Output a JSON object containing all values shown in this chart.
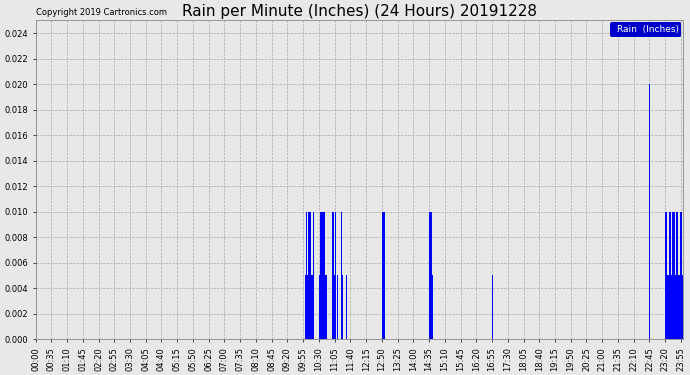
{
  "title": "Rain per Minute (Inches) (24 Hours) 20191228",
  "copyright_text": "Copyright 2019 Cartronics.com",
  "legend_label": "Rain  (Inches)",
  "ylim": [
    0,
    0.025
  ],
  "yticks": [
    0.0,
    0.002,
    0.004,
    0.006,
    0.008,
    0.01,
    0.012,
    0.014,
    0.016,
    0.018,
    0.02,
    0.022,
    0.024
  ],
  "background_color": "#e8e8e8",
  "plot_bg_color": "#e8e8e8",
  "bar_color": "#0000ff",
  "grid_color": "#aaaaaa",
  "title_fontsize": 11,
  "tick_fontsize": 6,
  "total_minutes": 1440,
  "xtick_positions": [
    0,
    35,
    70,
    105,
    140,
    175,
    210,
    245,
    280,
    315,
    350,
    385,
    420,
    455,
    490,
    525,
    560,
    595,
    630,
    665,
    700,
    735,
    770,
    805,
    840,
    875,
    910,
    945,
    980,
    1015,
    1050,
    1085,
    1120,
    1155,
    1190,
    1225,
    1260,
    1295,
    1330,
    1365,
    1400,
    1435
  ],
  "xtick_labels": [
    "00:00",
    "00:35",
    "01:10",
    "01:45",
    "02:20",
    "02:55",
    "03:30",
    "04:05",
    "04:40",
    "05:15",
    "05:50",
    "06:25",
    "07:00",
    "07:35",
    "08:10",
    "08:45",
    "09:20",
    "09:55",
    "10:30",
    "11:05",
    "11:40",
    "12:15",
    "12:50",
    "13:25",
    "14:00",
    "14:35",
    "15:10",
    "15:45",
    "16:20",
    "16:55",
    "17:30",
    "18:05",
    "18:40",
    "19:15",
    "19:50",
    "20:25",
    "21:00",
    "21:35",
    "22:10",
    "22:45",
    "23:20",
    "23:55"
  ]
}
